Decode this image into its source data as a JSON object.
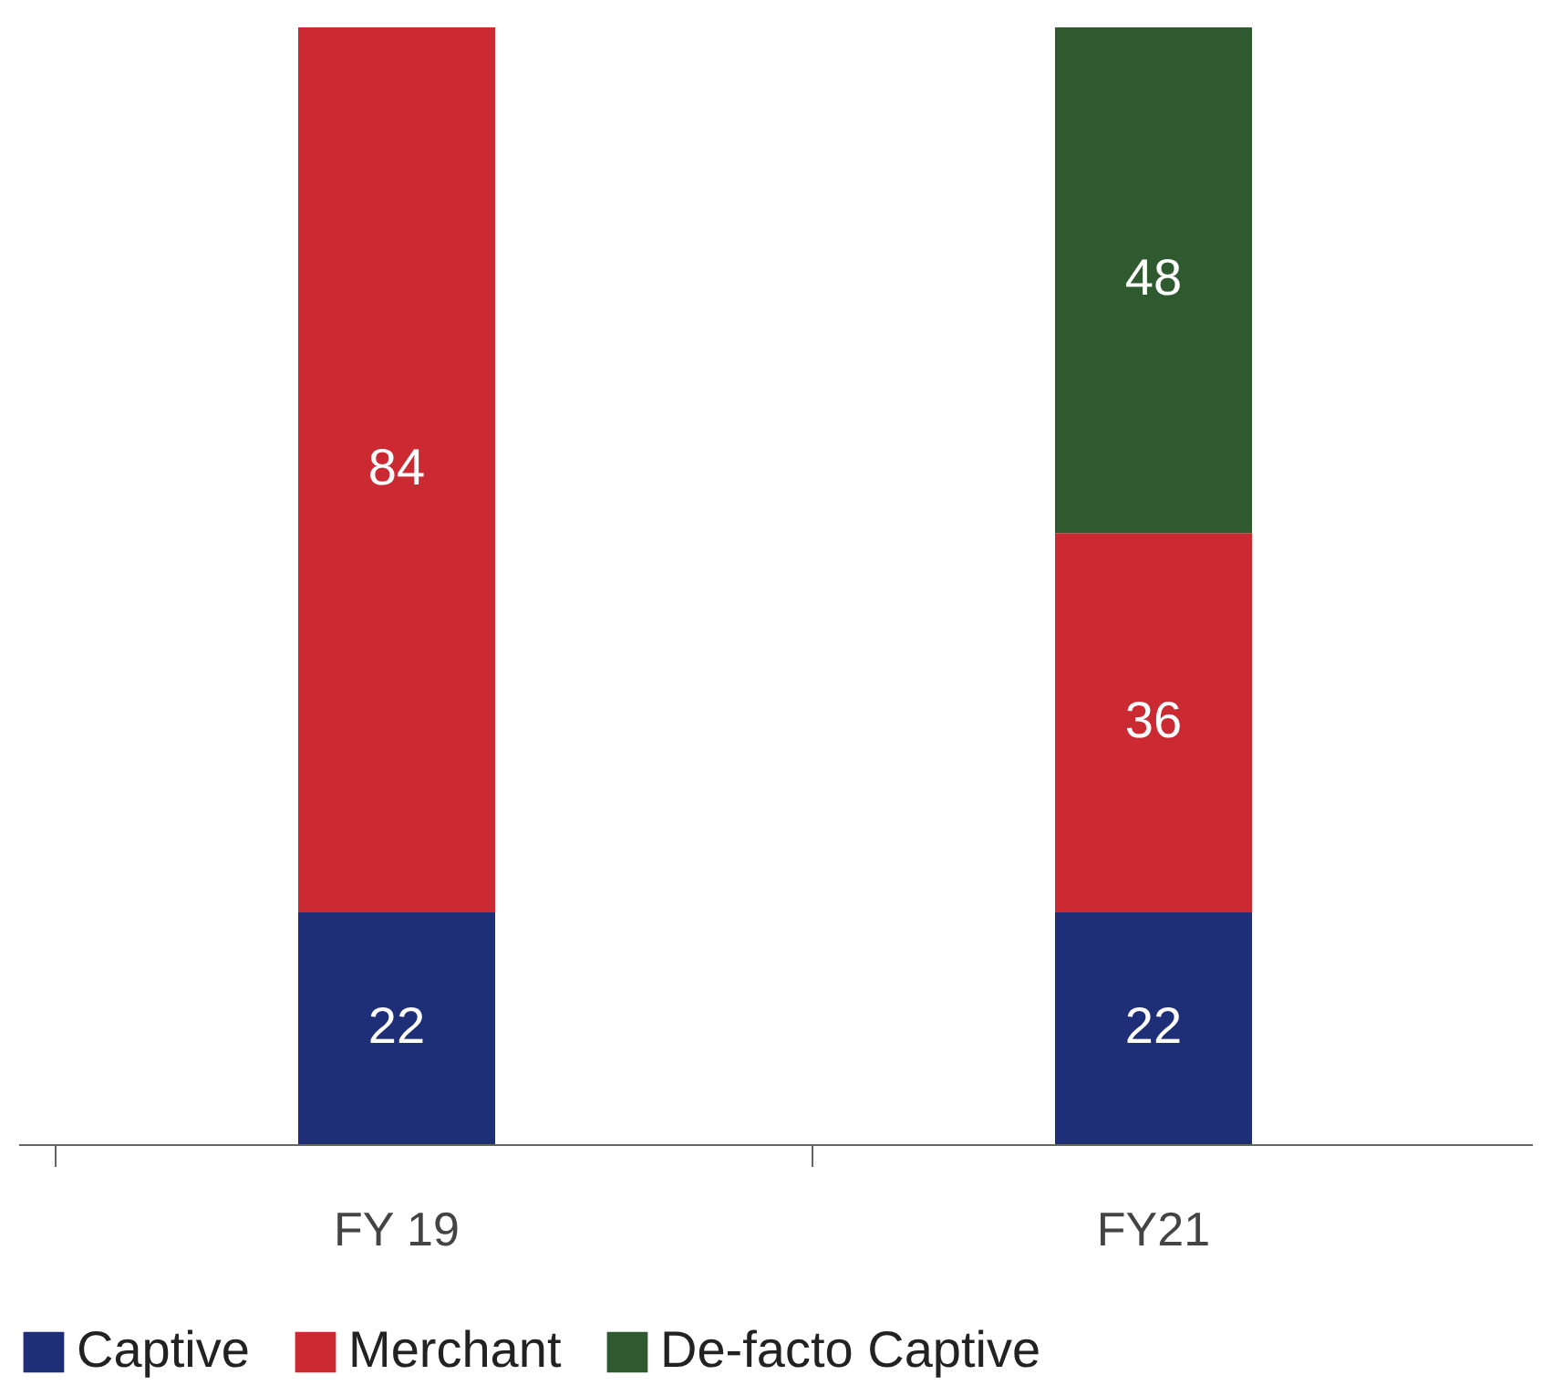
{
  "chart_data": {
    "type": "bar",
    "stacked": true,
    "categories": [
      "FY 19",
      "FY21"
    ],
    "series": [
      {
        "name": "Captive",
        "color": "#1e2f78",
        "values": [
          22,
          22
        ]
      },
      {
        "name": "Merchant",
        "color": "#cc2a33",
        "values": [
          84,
          36
        ]
      },
      {
        "name": "De-facto Captive",
        "color": "#2f5a2f",
        "values": [
          null,
          48
        ]
      }
    ],
    "data_labels": true,
    "legend": "bottom left",
    "grid": false
  }
}
